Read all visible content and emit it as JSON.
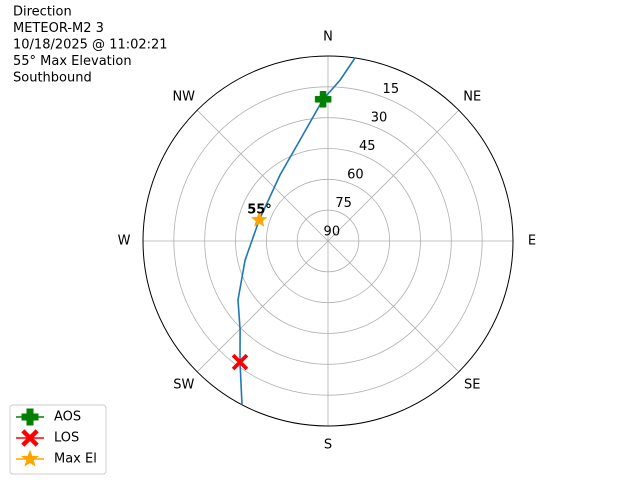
{
  "chart_data": {
    "type": "polar",
    "title": [
      "Direction",
      "METEOR-M2 3",
      "10/18/2025 @ 11:02:21",
      "55° Max Elevation",
      "Southbound"
    ],
    "rlim": [
      0,
      90
    ],
    "rticks": [
      15,
      30,
      45,
      60,
      75,
      90
    ],
    "thetaticks": [
      {
        "value": 0,
        "label": "N"
      },
      {
        "value": 45,
        "label": "NE"
      },
      {
        "value": 90,
        "label": "E"
      },
      {
        "value": 135,
        "label": "SE"
      },
      {
        "value": 180,
        "label": "S"
      },
      {
        "value": 225,
        "label": "SW"
      },
      {
        "value": 270,
        "label": "W"
      },
      {
        "value": 315,
        "label": "NW"
      }
    ],
    "grid": true,
    "legend": "lower left",
    "track": {
      "color": "#1f77b4",
      "azimuth": [
        8.4,
        4.3,
        358,
        344.5,
        324,
        287,
        257,
        236.8,
        224.7,
        216,
        207.7
      ],
      "elevation": [
        0,
        11.5,
        21,
        39,
        50.3,
        55,
        48.6,
        37.7,
        29.2,
        17.2,
        0
      ]
    },
    "series": [
      {
        "name": "AOS",
        "color": "#008000",
        "marker": "plus",
        "azimuth": [
          358
        ],
        "elevation": [
          21
        ]
      },
      {
        "name": "LOS",
        "color": "#ff0000",
        "marker": "x",
        "azimuth": [
          216
        ],
        "elevation": [
          17.2
        ]
      },
      {
        "name": "Max El",
        "color": "#ffa500",
        "marker": "star",
        "azimuth": [
          287
        ],
        "elevation": [
          55
        ],
        "value_labels": [
          "55°"
        ]
      }
    ]
  }
}
